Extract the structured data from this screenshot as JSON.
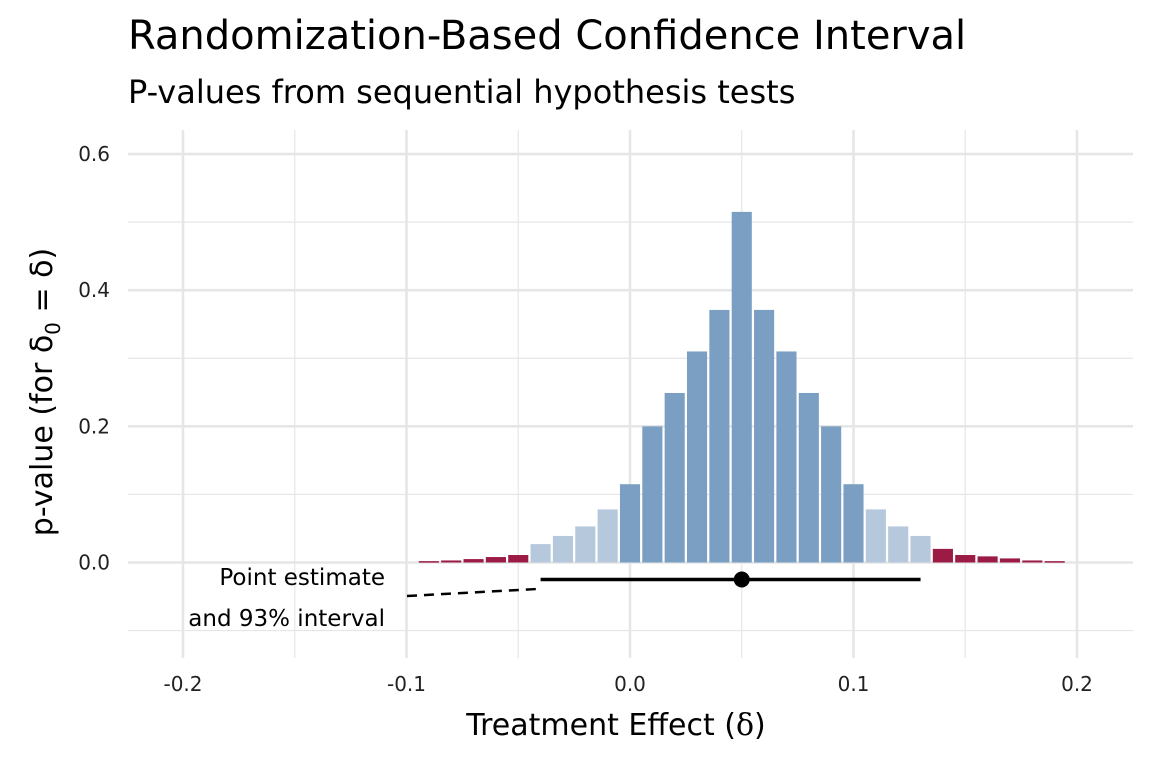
{
  "title": "Randomization-Based Confidence Interval",
  "subtitle": "P-values from sequential hypothesis tests",
  "colors": {
    "inside": "#7b9fc2",
    "near": "#b5c8dc",
    "outside": "#9b1b45",
    "grid": "#e6e6e6",
    "estimate": "#000000"
  },
  "chart_data": {
    "type": "bar",
    "title": "Randomization-Based Confidence Interval",
    "subtitle": "P-values from sequential hypothesis tests",
    "xlabel_prefix": "Treatment Effect (",
    "xlabel_symbol": "δ",
    "xlabel_suffix": ")",
    "ylabel": "p-value (for δ",
    "ylabel_sub": "0",
    "ylabel_rest": " = δ)",
    "xlim": [
      -0.225,
      0.225
    ],
    "ylim": [
      -0.1,
      0.62
    ],
    "x_ticks": [
      -0.2,
      -0.1,
      0.0,
      0.1,
      0.2
    ],
    "x_tick_labels": [
      "-0.2",
      "-0.1",
      "0.0",
      "0.1",
      "0.2"
    ],
    "y_ticks": [
      0.0,
      0.2,
      0.4,
      0.6
    ],
    "y_tick_labels": [
      "0.0",
      "0.2",
      "0.4",
      "0.6"
    ],
    "bar_width": 0.009,
    "bars": [
      {
        "x": -0.09,
        "p": 0.002,
        "group": "outside"
      },
      {
        "x": -0.08,
        "p": 0.003,
        "group": "outside"
      },
      {
        "x": -0.07,
        "p": 0.005,
        "group": "outside"
      },
      {
        "x": -0.06,
        "p": 0.008,
        "group": "outside"
      },
      {
        "x": -0.05,
        "p": 0.011,
        "group": "outside"
      },
      {
        "x": -0.04,
        "p": 0.027,
        "group": "near"
      },
      {
        "x": -0.03,
        "p": 0.039,
        "group": "near"
      },
      {
        "x": -0.02,
        "p": 0.053,
        "group": "near"
      },
      {
        "x": -0.01,
        "p": 0.078,
        "group": "near"
      },
      {
        "x": 0.0,
        "p": 0.115,
        "group": "inside"
      },
      {
        "x": 0.01,
        "p": 0.2,
        "group": "inside"
      },
      {
        "x": 0.02,
        "p": 0.249,
        "group": "inside"
      },
      {
        "x": 0.03,
        "p": 0.31,
        "group": "inside"
      },
      {
        "x": 0.04,
        "p": 0.371,
        "group": "inside"
      },
      {
        "x": 0.05,
        "p": 0.515,
        "group": "inside"
      },
      {
        "x": 0.06,
        "p": 0.371,
        "group": "inside"
      },
      {
        "x": 0.07,
        "p": 0.31,
        "group": "inside"
      },
      {
        "x": 0.08,
        "p": 0.249,
        "group": "inside"
      },
      {
        "x": 0.09,
        "p": 0.2,
        "group": "inside"
      },
      {
        "x": 0.1,
        "p": 0.115,
        "group": "inside"
      },
      {
        "x": 0.11,
        "p": 0.078,
        "group": "near"
      },
      {
        "x": 0.12,
        "p": 0.053,
        "group": "near"
      },
      {
        "x": 0.13,
        "p": 0.039,
        "group": "near"
      },
      {
        "x": 0.14,
        "p": 0.02,
        "group": "outside"
      },
      {
        "x": 0.15,
        "p": 0.011,
        "group": "outside"
      },
      {
        "x": 0.16,
        "p": 0.009,
        "group": "outside"
      },
      {
        "x": 0.17,
        "p": 0.006,
        "group": "outside"
      },
      {
        "x": 0.18,
        "p": 0.003,
        "group": "outside"
      },
      {
        "x": 0.19,
        "p": 0.002,
        "group": "outside"
      }
    ],
    "point_estimate": 0.05,
    "interval": [
      -0.04,
      0.13
    ],
    "interval_y": -0.025,
    "annotation_line1": "Point estimate",
    "annotation_line2": "and 93% interval",
    "grid": true,
    "legend": "none"
  }
}
